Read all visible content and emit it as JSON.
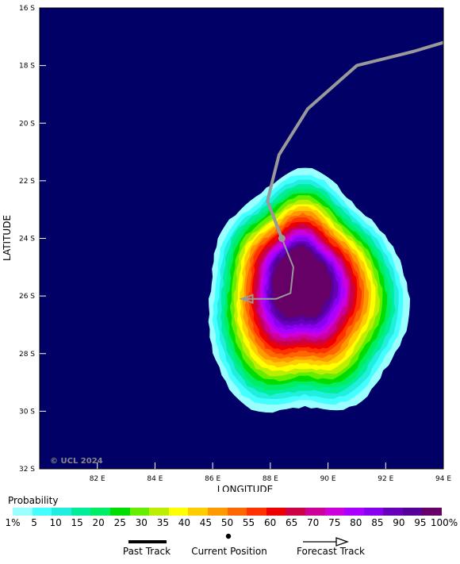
{
  "map": {
    "x_axis_label": "LONGITUDE",
    "y_axis_label": "LATITUDE",
    "x_ticks": [
      {
        "value": 82,
        "label": "82 E"
      },
      {
        "value": 84,
        "label": "84 E"
      },
      {
        "value": 86,
        "label": "86 E"
      },
      {
        "value": 88,
        "label": "88 E"
      },
      {
        "value": 90,
        "label": "90 E"
      },
      {
        "value": 92,
        "label": "92 E"
      },
      {
        "value": 94,
        "label": "94 E"
      }
    ],
    "y_ticks": [
      {
        "value": -16,
        "label": "16 S"
      },
      {
        "value": -18,
        "label": "18 S"
      },
      {
        "value": -20,
        "label": "20 S"
      },
      {
        "value": -22,
        "label": "22 S"
      },
      {
        "value": -24,
        "label": "24 S"
      },
      {
        "value": -26,
        "label": "26 S"
      },
      {
        "value": -28,
        "label": "28 S"
      },
      {
        "value": -30,
        "label": "30 S"
      },
      {
        "value": -32,
        "label": "32 S"
      }
    ],
    "lon_range": [
      80,
      94
    ],
    "lat_range": [
      -32,
      -16
    ],
    "copyright": "© UCL 2024",
    "background_color": "#000066"
  },
  "chart_data": {
    "type": "heatmap",
    "title": "",
    "xlabel": "LONGITUDE",
    "ylabel": "LATITUDE",
    "xlim": [
      80,
      94
    ],
    "ylim": [
      -32,
      -16
    ],
    "probability_field": {
      "center_lon": 89.2,
      "center_lat": -25.6,
      "max_probability": 100,
      "outer_1pct_extent": {
        "west_lon": 85.2,
        "east_lon": 92.8,
        "north_lat": -22.0,
        "south_lat": -30.0
      }
    },
    "past_track": [
      [
        94.0,
        -17.2
      ],
      [
        93.0,
        -17.5
      ],
      [
        91.0,
        -18.0
      ],
      [
        89.3,
        -19.5
      ],
      [
        88.3,
        -21.1
      ],
      [
        87.9,
        -22.7
      ],
      [
        88.4,
        -24.0
      ]
    ],
    "current_position": [
      88.4,
      -24.0
    ],
    "forecast_track": [
      [
        88.4,
        -24.0
      ],
      [
        88.8,
        -25.0
      ],
      [
        88.7,
        -25.9
      ],
      [
        88.2,
        -26.1
      ],
      [
        87.0,
        -26.1
      ]
    ]
  },
  "legend": {
    "title": "Probability",
    "colors": [
      "#99ffff",
      "#44ffff",
      "#22eedd",
      "#00ee99",
      "#00ee66",
      "#00dd00",
      "#66ee00",
      "#bbee00",
      "#ffff00",
      "#ffcc00",
      "#ff9900",
      "#ff6600",
      "#ff3300",
      "#ee0000",
      "#cc0044",
      "#cc0099",
      "#cc00dd",
      "#aa00ff",
      "#8800ee",
      "#6600bb",
      "#550099",
      "#660066"
    ],
    "labels": [
      "1%",
      "5",
      "10",
      "15",
      "20",
      "25",
      "30",
      "35",
      "40",
      "45",
      "50",
      "55",
      "60",
      "65",
      "70",
      "75",
      "80",
      "85",
      "90",
      "95",
      "100%"
    ]
  },
  "track_key": {
    "past": "Past Track",
    "current": "Current Position",
    "forecast": "Forecast Track"
  }
}
